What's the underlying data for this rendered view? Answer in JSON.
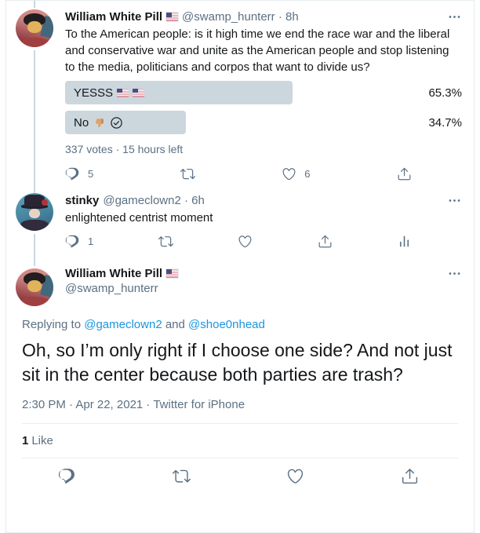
{
  "colors": {
    "accent_blue": "#1b95e0",
    "text": "#14171a",
    "muted_gray": "#5b7083",
    "poll_bar": "#ccd6dd",
    "card_border": "#e6ecf0"
  },
  "icons": {
    "reply": "reply-bubble-icon",
    "retweet": "retweet-icon",
    "like": "heart-icon",
    "share": "share-upload-icon",
    "analytics": "analytics-bars-icon",
    "more": "more-ellipsis-icon",
    "flag": "us-flag-emoji",
    "thumbs_down": "thumbs-down-emoji",
    "vote_check": "your-vote-check-icon"
  },
  "tweet1": {
    "author": "William White Pill",
    "handle_meta": "@swamp_hunterr · 8h",
    "text": "To the American people: is it high time we end the race war and the liberal and conservative war and unite as the American people and stop listening to the media, politicians and corpos that want to divide us?",
    "poll": {
      "options": [
        {
          "label": "YESSS",
          "percent_label": "65.3%",
          "percent": 65.3
        },
        {
          "label": "No",
          "percent_label": "34.7%",
          "percent": 34.7
        }
      ],
      "meta": "337 votes · 15 hours left"
    },
    "reply_count": "5",
    "like_count": "6"
  },
  "tweet2": {
    "author": "stinky",
    "handle_meta": "@gameclown2 · 6h",
    "text": "enlightened centrist moment",
    "reply_count": "1"
  },
  "tweet3": {
    "author": "William White Pill",
    "handle": "@swamp_hunterr",
    "replying_prefix": "Replying to",
    "replying_handle1": "@gameclown2",
    "replying_conjunction": "and",
    "replying_handle2": "@shoe0nhead",
    "text": "Oh, so I’m only right if I choose one side? And not just sit in the center because both parties are trash?",
    "timestamp": "2:30 PM · Apr 22, 2021 · Twitter for iPhone",
    "like_count": "1",
    "like_label": "Like"
  }
}
